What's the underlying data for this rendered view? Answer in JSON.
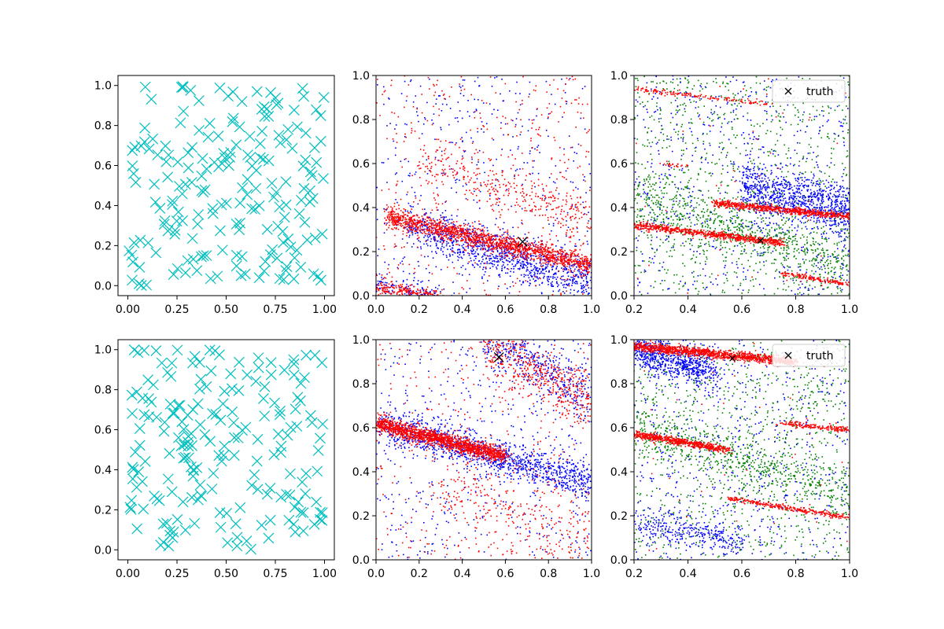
{
  "figure": {
    "layout": "2x3 grid of scatter plots"
  },
  "chart_data": [
    {
      "type": "scatter",
      "row": 0,
      "col": 0,
      "marker": "x",
      "color": "#00bfbf",
      "xlim": [
        -0.05,
        1.05
      ],
      "ylim": [
        -0.05,
        1.05
      ],
      "xticks": [
        0.0,
        0.25,
        0.5,
        0.75,
        1.0
      ],
      "xtick_labels": [
        "0.00",
        "0.25",
        "0.50",
        "0.75",
        "1.00"
      ],
      "yticks": [
        0.0,
        0.2,
        0.4,
        0.6,
        0.8,
        1.0
      ],
      "ytick_labels": [
        "0.0",
        "0.2",
        "0.4",
        "0.6",
        "0.8",
        "1.0"
      ],
      "series": [
        {
          "points": "≈200 points uniformly scattered over [0,1]×[0,1]",
          "count": 200,
          "seed": 11
        }
      ]
    },
    {
      "type": "scatter",
      "row": 0,
      "col": 1,
      "xlim": [
        0,
        1
      ],
      "ylim": [
        0,
        1
      ],
      "xticks": [
        0.0,
        0.2,
        0.4,
        0.6,
        0.8,
        1.0
      ],
      "xtick_labels": [
        "0.0",
        "0.2",
        "0.4",
        "0.6",
        "0.8",
        "1.0"
      ],
      "yticks": [
        0.0,
        0.2,
        0.4,
        0.6,
        0.8,
        1.0
      ],
      "ytick_labels": [
        "0.0",
        "0.2",
        "0.4",
        "0.6",
        "0.8",
        "1.0"
      ],
      "truth_marker": {
        "x": 0.68,
        "y": 0.245,
        "size": "large"
      },
      "series": [
        {
          "color": "#0000ff",
          "seed": 21,
          "bands": [
            {
              "x0": 0.0,
              "y0": 0.37,
              "x1": 1.0,
              "y1": 0.06,
              "spread": 0.05,
              "count": 1200,
              "xmin": 0.15
            },
            {
              "x0": 0.0,
              "y0": 0.05,
              "x1": 0.3,
              "y1": 0.0,
              "spread": 0.03,
              "count": 120
            }
          ],
          "noise": 450
        },
        {
          "color": "#ff0000",
          "seed": 22,
          "bands": [
            {
              "x0": 0.0,
              "y0": 0.37,
              "x1": 1.0,
              "y1": 0.14,
              "spread": 0.022,
              "count": 1600,
              "xmin": 0.05
            },
            {
              "x0": 0.2,
              "y0": 0.6,
              "x1": 1.0,
              "y1": 0.35,
              "spread": 0.05,
              "count": 300
            },
            {
              "x0": 0.0,
              "y0": 0.04,
              "x1": 0.3,
              "y1": 0.0,
              "spread": 0.015,
              "count": 200
            }
          ],
          "noise": 450
        }
      ]
    },
    {
      "type": "scatter",
      "row": 0,
      "col": 2,
      "xlim": [
        0.2,
        1.0
      ],
      "ylim": [
        0,
        1
      ],
      "xticks": [
        0.2,
        0.4,
        0.6,
        0.8,
        1.0
      ],
      "xtick_labels": [
        "0.2",
        "0.4",
        "0.6",
        "0.8",
        "1.0"
      ],
      "yticks": [
        0.0,
        0.2,
        0.4,
        0.6,
        0.8,
        1.0
      ],
      "ytick_labels": [
        "0.0",
        "0.2",
        "0.4",
        "0.6",
        "0.8",
        "1.0"
      ],
      "truth_marker": {
        "x": 0.67,
        "y": 0.25,
        "size": "small"
      },
      "legend": {
        "label": "truth",
        "loc": "upper right"
      },
      "series": [
        {
          "color": "#008000",
          "seed": 31,
          "bands": [
            {
              "x0": 0.2,
              "y0": 0.45,
              "x1": 1.0,
              "y1": 0.15,
              "spread": 0.07,
              "count": 700
            }
          ],
          "noise": 900
        },
        {
          "color": "#0000ff",
          "seed": 32,
          "bands": [
            {
              "x0": 0.6,
              "y0": 0.5,
              "x1": 1.0,
              "y1": 0.38,
              "spread": 0.06,
              "count": 900
            }
          ],
          "noise": 600
        },
        {
          "color": "#ff0000",
          "seed": 33,
          "bands": [
            {
              "x0": 0.2,
              "y0": 0.32,
              "x1": 0.75,
              "y1": 0.24,
              "spread": 0.008,
              "count": 700
            },
            {
              "x0": 0.5,
              "y0": 0.42,
              "x1": 1.0,
              "y1": 0.36,
              "spread": 0.008,
              "count": 700
            },
            {
              "x0": 0.2,
              "y0": 0.94,
              "x1": 0.7,
              "y1": 0.87,
              "spread": 0.006,
              "count": 160
            },
            {
              "x0": 0.75,
              "y0": 0.1,
              "x1": 1.0,
              "y1": 0.05,
              "spread": 0.006,
              "count": 160
            },
            {
              "x0": 0.3,
              "y0": 0.6,
              "x1": 0.4,
              "y1": 0.59,
              "spread": 0.004,
              "count": 25
            }
          ],
          "noise": 40
        }
      ]
    },
    {
      "type": "scatter",
      "row": 1,
      "col": 0,
      "marker": "x",
      "color": "#00bfbf",
      "xlim": [
        -0.05,
        1.05
      ],
      "ylim": [
        -0.05,
        1.05
      ],
      "xticks": [
        0.0,
        0.25,
        0.5,
        0.75,
        1.0
      ],
      "xtick_labels": [
        "0.00",
        "0.25",
        "0.50",
        "0.75",
        "1.00"
      ],
      "yticks": [
        0.0,
        0.2,
        0.4,
        0.6,
        0.8,
        1.0
      ],
      "ytick_labels": [
        "0.0",
        "0.2",
        "0.4",
        "0.6",
        "0.8",
        "1.0"
      ],
      "series": [
        {
          "points": "≈200 points uniformly scattered over [0,1]×[0,1]",
          "count": 200,
          "seed": 41
        }
      ]
    },
    {
      "type": "scatter",
      "row": 1,
      "col": 1,
      "xlim": [
        0,
        1
      ],
      "ylim": [
        0,
        1
      ],
      "xticks": [
        0.0,
        0.2,
        0.4,
        0.6,
        0.8,
        1.0
      ],
      "xtick_labels": [
        "0.0",
        "0.2",
        "0.4",
        "0.6",
        "0.8",
        "1.0"
      ],
      "yticks": [
        0.0,
        0.2,
        0.4,
        0.6,
        0.8,
        1.0
      ],
      "ytick_labels": [
        "0.0",
        "0.2",
        "0.4",
        "0.6",
        "0.8",
        "1.0"
      ],
      "truth_marker": {
        "x": 0.57,
        "y": 0.92,
        "size": "large"
      },
      "series": [
        {
          "color": "#0000ff",
          "seed": 51,
          "bands": [
            {
              "x0": 0.0,
              "y0": 0.62,
              "x1": 1.0,
              "y1": 0.35,
              "spread": 0.04,
              "count": 1200
            },
            {
              "x0": 0.5,
              "y0": 1.0,
              "x1": 1.0,
              "y1": 0.75,
              "spread": 0.06,
              "count": 400
            }
          ],
          "noise": 500
        },
        {
          "color": "#ff0000",
          "seed": 52,
          "bands": [
            {
              "x0": 0.0,
              "y0": 0.62,
              "x1": 0.6,
              "y1": 0.47,
              "spread": 0.018,
              "count": 1500
            },
            {
              "x0": 0.5,
              "y0": 0.98,
              "x1": 1.0,
              "y1": 0.7,
              "spread": 0.06,
              "count": 450
            },
            {
              "x0": 0.3,
              "y0": 0.3,
              "x1": 1.0,
              "y1": 0.1,
              "spread": 0.1,
              "count": 250
            }
          ],
          "noise": 350
        }
      ]
    },
    {
      "type": "scatter",
      "row": 1,
      "col": 2,
      "xlim": [
        0.2,
        1.0
      ],
      "ylim": [
        0,
        1
      ],
      "xticks": [
        0.2,
        0.4,
        0.6,
        0.8,
        1.0
      ],
      "xtick_labels": [
        "0.2",
        "0.4",
        "0.6",
        "0.8",
        "1.0"
      ],
      "yticks": [
        0.0,
        0.2,
        0.4,
        0.6,
        0.8,
        1.0
      ],
      "ytick_labels": [
        "0.0",
        "0.2",
        "0.4",
        "0.6",
        "0.8",
        "1.0"
      ],
      "truth_marker": {
        "x": 0.565,
        "y": 0.915,
        "size": "small"
      },
      "legend": {
        "label": "truth",
        "loc": "upper right"
      },
      "series": [
        {
          "color": "#008000",
          "seed": 61,
          "bands": [
            {
              "x0": 0.2,
              "y0": 0.6,
              "x1": 1.0,
              "y1": 0.3,
              "spread": 0.06,
              "count": 600
            }
          ],
          "noise": 900
        },
        {
          "color": "#0000ff",
          "seed": 62,
          "bands": [
            {
              "x0": 0.2,
              "y0": 0.95,
              "x1": 0.5,
              "y1": 0.85,
              "spread": 0.04,
              "count": 700
            },
            {
              "x0": 0.2,
              "y0": 0.18,
              "x1": 0.6,
              "y1": 0.08,
              "spread": 0.04,
              "count": 300
            }
          ],
          "noise": 600
        },
        {
          "color": "#ff0000",
          "seed": 63,
          "bands": [
            {
              "x0": 0.2,
              "y0": 0.97,
              "x1": 0.8,
              "y1": 0.9,
              "spread": 0.01,
              "count": 1200
            },
            {
              "x0": 0.2,
              "y0": 0.57,
              "x1": 0.55,
              "y1": 0.5,
              "spread": 0.008,
              "count": 600
            },
            {
              "x0": 0.55,
              "y0": 0.28,
              "x1": 1.0,
              "y1": 0.19,
              "spread": 0.006,
              "count": 300
            },
            {
              "x0": 0.75,
              "y0": 0.62,
              "x1": 1.0,
              "y1": 0.59,
              "spread": 0.006,
              "count": 180
            }
          ],
          "noise": 40
        }
      ]
    }
  ]
}
